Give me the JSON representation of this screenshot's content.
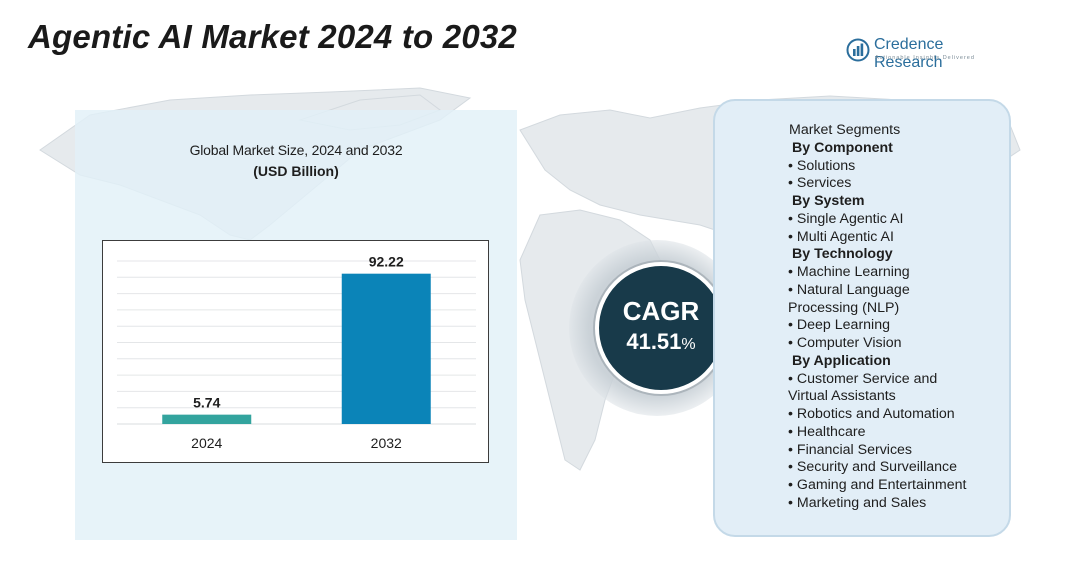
{
  "page": {
    "title": "Agentic AI Market 2024 to 2032"
  },
  "logo": {
    "name": "Credence Research",
    "tagline": "Actionable Insights Delivered",
    "icon": "credence-logo-icon",
    "color": "#2b6e9c"
  },
  "chart_data": {
    "type": "bar",
    "title": "Global Market Size, 2024 and 2032",
    "subtitle": "(USD Billion)",
    "categories": [
      "2024",
      "2032"
    ],
    "values": [
      5.74,
      92.22
    ],
    "value_labels": [
      "5.74",
      "92.22"
    ],
    "colors": [
      "#33a49e",
      "#0b84b8"
    ],
    "ylim": [
      0,
      100
    ],
    "grid": true,
    "legend": "none",
    "xlabel": "",
    "ylabel": ""
  },
  "cagr": {
    "label": "CAGR",
    "value": "41.51",
    "unit": "%"
  },
  "segments": {
    "title": "Market Segments",
    "groups": [
      {
        "heading": "By Component",
        "items": [
          "• Solutions",
          "• Services"
        ]
      },
      {
        "heading": "By System",
        "items": [
          "• Single Agentic AI",
          "• Multi Agentic AI"
        ]
      },
      {
        "heading": "By Technology",
        "items": [
          "• Machine Learning",
          "• Natural Language",
          "Processing (NLP)",
          "• Deep Learning",
          "• Computer Vision"
        ]
      },
      {
        "heading": "By Application",
        "items": [
          "• Customer Service and",
          "Virtual Assistants",
          "• Robotics and Automation",
          "• Healthcare",
          "• Financial Services",
          "• Security and Surveillance",
          "• Gaming and Entertainment",
          "• Marketing and Sales"
        ]
      }
    ]
  },
  "colors": {
    "panel_left": "#e2f0f8",
    "panel_right": "#e2eef7",
    "cagr_circle": "#183a4a",
    "map": "#e3e7ea"
  }
}
